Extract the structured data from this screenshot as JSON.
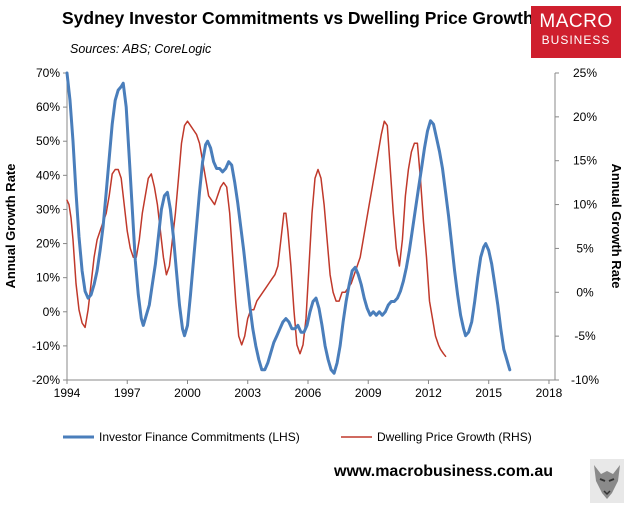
{
  "title": "Sydney Investor Commitments vs Dwelling Price Growth",
  "sources": "Sources: ABS; CoreLogic",
  "logo": {
    "line1": "MACRO",
    "line2": "BUSINESS",
    "color": "#cf1f2e"
  },
  "website": "www.macrobusiness.com.au",
  "chart_data": {
    "type": "line",
    "xlabel": "",
    "ylabel_left": "Annual Growth Rate",
    "ylabel_right": "Annual Growth Rate",
    "xlim": [
      1994,
      2018.3
    ],
    "x_ticks": [
      "1994",
      "1997",
      "2000",
      "2003",
      "2006",
      "2009",
      "2012",
      "2015",
      "2018"
    ],
    "y_left": {
      "lim": [
        -20,
        70
      ],
      "ticks": [
        "70%",
        "60%",
        "50%",
        "40%",
        "30%",
        "20%",
        "10%",
        "0%",
        "-10%",
        "-20%"
      ]
    },
    "y_right": {
      "lim": [
        -10,
        25
      ],
      "ticks": [
        "25%",
        "20%",
        "15%",
        "10%",
        "5%",
        "0%",
        "-5%",
        "-10%"
      ]
    },
    "grid": false,
    "legend_position": "bottom",
    "series": [
      {
        "name": "Investor Finance Commitments (LHS)",
        "axis": "left",
        "color": "#4a7ebb",
        "points": [
          [
            1994.0,
            70
          ],
          [
            1994.15,
            62
          ],
          [
            1994.3,
            50
          ],
          [
            1994.45,
            35
          ],
          [
            1994.6,
            22
          ],
          [
            1994.75,
            12
          ],
          [
            1994.9,
            6
          ],
          [
            1995.05,
            4
          ],
          [
            1995.2,
            5
          ],
          [
            1995.35,
            8
          ],
          [
            1995.5,
            12
          ],
          [
            1995.65,
            18
          ],
          [
            1995.8,
            25
          ],
          [
            1995.95,
            35
          ],
          [
            1996.1,
            45
          ],
          [
            1996.25,
            55
          ],
          [
            1996.4,
            62
          ],
          [
            1996.55,
            65
          ],
          [
            1996.7,
            66
          ],
          [
            1996.8,
            67
          ],
          [
            1996.95,
            60
          ],
          [
            1997.1,
            45
          ],
          [
            1997.25,
            30
          ],
          [
            1997.4,
            15
          ],
          [
            1997.55,
            5
          ],
          [
            1997.7,
            -2
          ],
          [
            1997.8,
            -4
          ],
          [
            1997.95,
            -1
          ],
          [
            1998.1,
            2
          ],
          [
            1998.25,
            8
          ],
          [
            1998.4,
            14
          ],
          [
            1998.55,
            22
          ],
          [
            1998.7,
            30
          ],
          [
            1998.85,
            34
          ],
          [
            1999.0,
            35
          ],
          [
            1999.15,
            30
          ],
          [
            1999.3,
            22
          ],
          [
            1999.45,
            12
          ],
          [
            1999.6,
            2
          ],
          [
            1999.75,
            -5
          ],
          [
            1999.85,
            -7
          ],
          [
            2000.0,
            -4
          ],
          [
            2000.15,
            5
          ],
          [
            2000.3,
            15
          ],
          [
            2000.45,
            25
          ],
          [
            2000.6,
            35
          ],
          [
            2000.75,
            44
          ],
          [
            2000.9,
            49
          ],
          [
            2001.0,
            50
          ],
          [
            2001.15,
            48
          ],
          [
            2001.3,
            44
          ],
          [
            2001.45,
            42
          ],
          [
            2001.6,
            42
          ],
          [
            2001.75,
            41
          ],
          [
            2001.9,
            42
          ],
          [
            2002.05,
            44
          ],
          [
            2002.2,
            43
          ],
          [
            2002.35,
            38
          ],
          [
            2002.5,
            32
          ],
          [
            2002.65,
            25
          ],
          [
            2002.8,
            18
          ],
          [
            2002.95,
            10
          ],
          [
            2003.1,
            2
          ],
          [
            2003.25,
            -5
          ],
          [
            2003.4,
            -10
          ],
          [
            2003.55,
            -14
          ],
          [
            2003.7,
            -17
          ],
          [
            2003.85,
            -17
          ],
          [
            2004.0,
            -15
          ],
          [
            2004.15,
            -12
          ],
          [
            2004.3,
            -9
          ],
          [
            2004.45,
            -7
          ],
          [
            2004.6,
            -5
          ],
          [
            2004.75,
            -3
          ],
          [
            2004.9,
            -2
          ],
          [
            2005.05,
            -3
          ],
          [
            2005.2,
            -5
          ],
          [
            2005.35,
            -5
          ],
          [
            2005.5,
            -4
          ],
          [
            2005.65,
            -6
          ],
          [
            2005.8,
            -6
          ],
          [
            2005.95,
            -4
          ],
          [
            2006.1,
            0
          ],
          [
            2006.25,
            3
          ],
          [
            2006.4,
            4
          ],
          [
            2006.55,
            1
          ],
          [
            2006.7,
            -4
          ],
          [
            2006.85,
            -10
          ],
          [
            2007.0,
            -14
          ],
          [
            2007.15,
            -17
          ],
          [
            2007.3,
            -18
          ],
          [
            2007.45,
            -15
          ],
          [
            2007.6,
            -10
          ],
          [
            2007.75,
            -3
          ],
          [
            2007.9,
            3
          ],
          [
            2008.05,
            8
          ],
          [
            2008.2,
            12
          ],
          [
            2008.35,
            13
          ],
          [
            2008.5,
            11
          ],
          [
            2008.65,
            8
          ],
          [
            2008.8,
            4
          ],
          [
            2008.95,
            1
          ],
          [
            2009.1,
            -1
          ],
          [
            2009.25,
            0
          ],
          [
            2009.4,
            -1
          ],
          [
            2009.55,
            0
          ],
          [
            2009.7,
            -1
          ],
          [
            2009.85,
            0
          ],
          [
            2010.0,
            2
          ],
          [
            2010.15,
            3
          ],
          [
            2010.3,
            3
          ],
          [
            2010.45,
            4
          ],
          [
            2010.6,
            6
          ],
          [
            2010.75,
            9
          ],
          [
            2010.9,
            13
          ],
          [
            2011.05,
            18
          ],
          [
            2011.2,
            24
          ],
          [
            2011.35,
            30
          ],
          [
            2011.5,
            36
          ],
          [
            2011.65,
            42
          ],
          [
            2011.8,
            48
          ],
          [
            2011.95,
            53
          ],
          [
            2012.1,
            56
          ],
          [
            2012.25,
            55
          ],
          [
            2012.4,
            51
          ],
          [
            2012.55,
            47
          ],
          [
            2012.7,
            42
          ],
          [
            2012.85,
            35
          ],
          [
            2013.0,
            28
          ],
          [
            2013.15,
            20
          ],
          [
            2013.3,
            12
          ],
          [
            2013.45,
            5
          ],
          [
            2013.6,
            -1
          ],
          [
            2013.75,
            -5
          ],
          [
            2013.85,
            -7
          ],
          [
            2014.0,
            -6
          ],
          [
            2014.15,
            -3
          ],
          [
            2014.3,
            3
          ],
          [
            2014.45,
            10
          ],
          [
            2014.6,
            16
          ],
          [
            2014.75,
            19
          ],
          [
            2014.85,
            20
          ],
          [
            2015.0,
            18
          ],
          [
            2015.15,
            14
          ],
          [
            2015.3,
            8
          ],
          [
            2015.45,
            2
          ],
          [
            2015.6,
            -5
          ],
          [
            2015.75,
            -11
          ],
          [
            2015.85,
            -13
          ],
          [
            2016.0,
            -16
          ],
          [
            2016.05,
            -17
          ]
        ]
      },
      {
        "name": "Dwelling Price Growth (RHS)",
        "axis": "right",
        "color": "#c0392b",
        "points": [
          [
            1994.0,
            10.5
          ],
          [
            1994.1,
            10
          ],
          [
            1994.2,
            8.5
          ],
          [
            1994.3,
            6
          ],
          [
            1994.45,
            1
          ],
          [
            1994.6,
            -2
          ],
          [
            1994.75,
            -3.5
          ],
          [
            1994.9,
            -4
          ],
          [
            1995.05,
            -2
          ],
          [
            1995.2,
            1
          ],
          [
            1995.35,
            4
          ],
          [
            1995.5,
            6
          ],
          [
            1995.65,
            7
          ],
          [
            1995.8,
            8
          ],
          [
            1995.95,
            9
          ],
          [
            1996.1,
            11
          ],
          [
            1996.25,
            13.5
          ],
          [
            1996.4,
            14
          ],
          [
            1996.55,
            14
          ],
          [
            1996.7,
            13
          ],
          [
            1996.85,
            10
          ],
          [
            1997.0,
            7
          ],
          [
            1997.15,
            5
          ],
          [
            1997.3,
            4
          ],
          [
            1997.45,
            4
          ],
          [
            1997.6,
            6
          ],
          [
            1997.75,
            9
          ],
          [
            1997.9,
            11
          ],
          [
            1998.05,
            13
          ],
          [
            1998.2,
            13.5
          ],
          [
            1998.35,
            12
          ],
          [
            1998.5,
            10
          ],
          [
            1998.65,
            7
          ],
          [
            1998.8,
            4
          ],
          [
            1998.95,
            2
          ],
          [
            1999.1,
            3
          ],
          [
            1999.25,
            6
          ],
          [
            1999.4,
            9
          ],
          [
            1999.55,
            13
          ],
          [
            1999.7,
            17
          ],
          [
            1999.85,
            19
          ],
          [
            2000.0,
            19.5
          ],
          [
            2000.15,
            19
          ],
          [
            2000.3,
            18.5
          ],
          [
            2000.45,
            18
          ],
          [
            2000.6,
            17
          ],
          [
            2000.75,
            15
          ],
          [
            2000.9,
            13
          ],
          [
            2001.05,
            11
          ],
          [
            2001.2,
            10.5
          ],
          [
            2001.35,
            10
          ],
          [
            2001.5,
            11
          ],
          [
            2001.65,
            12
          ],
          [
            2001.8,
            12.5
          ],
          [
            2001.95,
            12
          ],
          [
            2002.1,
            9
          ],
          [
            2002.25,
            4
          ],
          [
            2002.4,
            -1
          ],
          [
            2002.55,
            -5
          ],
          [
            2002.7,
            -6
          ],
          [
            2002.85,
            -5
          ],
          [
            2003.0,
            -3
          ],
          [
            2003.15,
            -2
          ],
          [
            2003.3,
            -2
          ],
          [
            2003.45,
            -1
          ],
          [
            2003.6,
            -0.5
          ],
          [
            2003.75,
            0
          ],
          [
            2003.9,
            0.5
          ],
          [
            2004.05,
            1
          ],
          [
            2004.2,
            1.5
          ],
          [
            2004.35,
            2
          ],
          [
            2004.5,
            3
          ],
          [
            2004.65,
            6
          ],
          [
            2004.8,
            9
          ],
          [
            2004.9,
            9
          ],
          [
            2005.0,
            7
          ],
          [
            2005.15,
            3
          ],
          [
            2005.3,
            -2
          ],
          [
            2005.45,
            -6
          ],
          [
            2005.6,
            -7
          ],
          [
            2005.75,
            -6
          ],
          [
            2005.9,
            -3
          ],
          [
            2006.05,
            3
          ],
          [
            2006.2,
            9
          ],
          [
            2006.35,
            13
          ],
          [
            2006.5,
            14
          ],
          [
            2006.65,
            13
          ],
          [
            2006.8,
            10
          ],
          [
            2006.95,
            6
          ],
          [
            2007.1,
            2
          ],
          [
            2007.25,
            0
          ],
          [
            2007.4,
            -1
          ],
          [
            2007.55,
            -1
          ],
          [
            2007.7,
            0
          ],
          [
            2007.85,
            0
          ],
          [
            2008.0,
            0.5
          ],
          [
            2008.15,
            1
          ],
          [
            2008.3,
            2
          ],
          [
            2008.45,
            3
          ],
          [
            2008.6,
            4
          ],
          [
            2008.75,
            6
          ],
          [
            2008.9,
            8
          ],
          [
            2009.05,
            10
          ],
          [
            2009.2,
            12
          ],
          [
            2009.35,
            14
          ],
          [
            2009.5,
            16
          ],
          [
            2009.65,
            18
          ],
          [
            2009.8,
            19.5
          ],
          [
            2009.95,
            19
          ],
          [
            2010.1,
            14
          ],
          [
            2010.25,
            9
          ],
          [
            2010.4,
            5
          ],
          [
            2010.55,
            3
          ],
          [
            2010.7,
            6
          ],
          [
            2010.85,
            11
          ],
          [
            2011.0,
            14
          ],
          [
            2011.15,
            16
          ],
          [
            2011.3,
            17
          ],
          [
            2011.45,
            17
          ],
          [
            2011.6,
            13
          ],
          [
            2011.75,
            8
          ],
          [
            2011.9,
            4
          ],
          [
            2012.05,
            -1
          ],
          [
            2012.2,
            -3
          ],
          [
            2012.35,
            -5
          ],
          [
            2012.5,
            -6
          ],
          [
            2012.6,
            -6.5
          ],
          [
            2012.75,
            -7
          ],
          [
            2012.85,
            -7.3
          ]
        ]
      }
    ]
  }
}
